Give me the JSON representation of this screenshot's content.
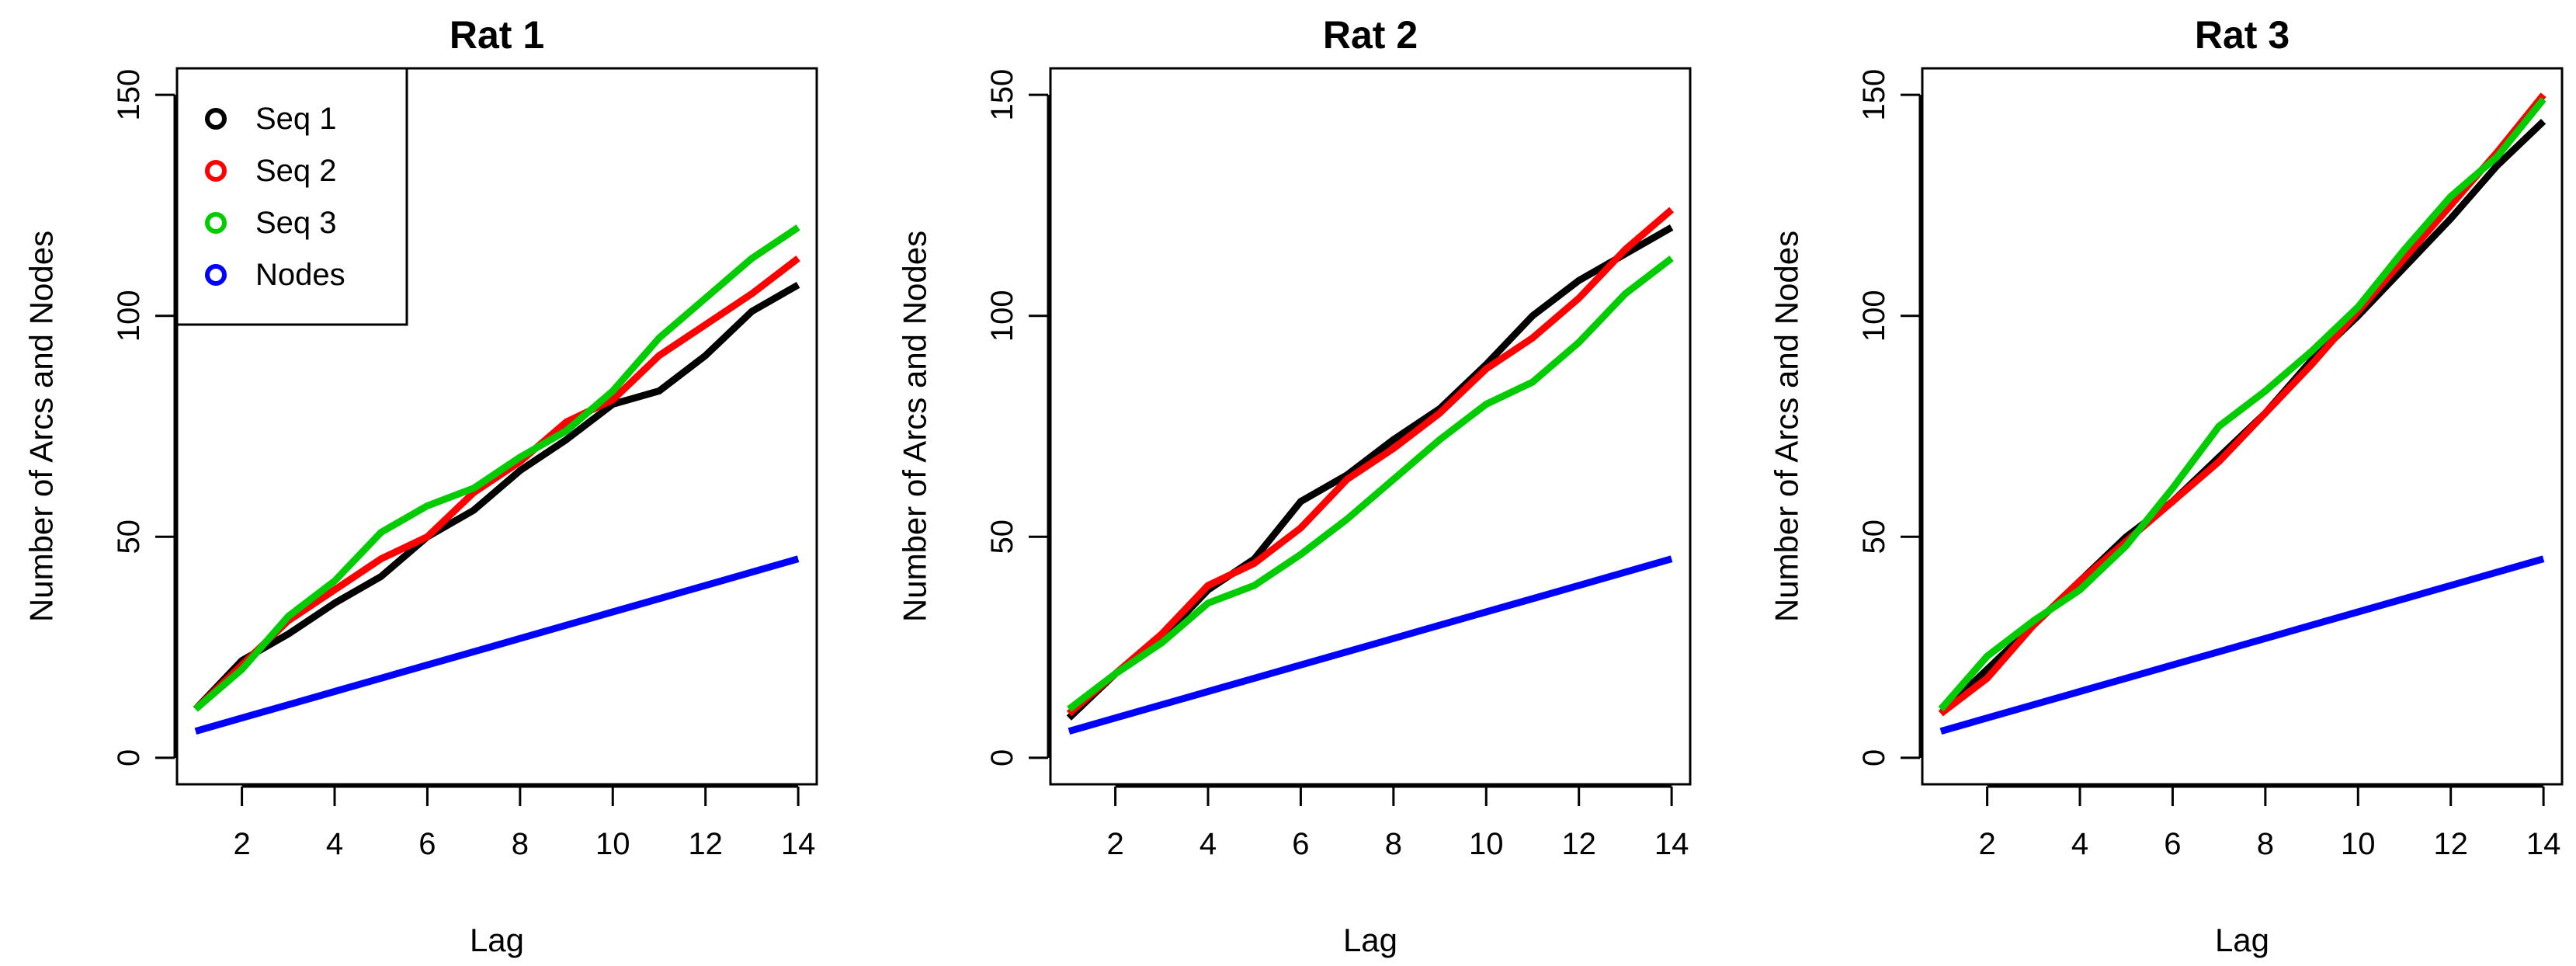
{
  "chart_data": [
    {
      "type": "line",
      "title": "Rat 1",
      "xlabel": "Lag",
      "ylabel": "Number of Arcs and Nodes",
      "xlim": [
        0.6,
        14.4
      ],
      "ylim": [
        -6,
        156
      ],
      "xticks": [
        2,
        4,
        6,
        8,
        10,
        12,
        14
      ],
      "yticks": [
        0,
        50,
        100,
        150
      ],
      "x": [
        1,
        2,
        3,
        4,
        5,
        6,
        7,
        8,
        9,
        10,
        11,
        12,
        13,
        14
      ],
      "legend": {
        "position": "top-left"
      },
      "series": [
        {
          "name": "Seq 1",
          "color": "#000000",
          "values": [
            11,
            22,
            28,
            35,
            41,
            50,
            56,
            65,
            72,
            80,
            83,
            91,
            101,
            107
          ]
        },
        {
          "name": "Seq 2",
          "color": "#ff0000",
          "values": [
            11,
            21,
            31,
            38,
            45,
            50,
            60,
            67,
            76,
            81,
            91,
            98,
            105,
            113
          ]
        },
        {
          "name": "Seq 3",
          "color": "#00cc00",
          "values": [
            11,
            20,
            32,
            40,
            51,
            57,
            61,
            68,
            74,
            83,
            95,
            104,
            113,
            120
          ]
        },
        {
          "name": "Nodes",
          "color": "#0000ff",
          "values": [
            6,
            9,
            12,
            15,
            18,
            21,
            24,
            27,
            30,
            33,
            36,
            39,
            42,
            45
          ]
        }
      ]
    },
    {
      "type": "line",
      "title": "Rat 2",
      "xlabel": "Lag",
      "ylabel": "Number of Arcs and Nodes",
      "xlim": [
        0.6,
        14.4
      ],
      "ylim": [
        -6,
        156
      ],
      "xticks": [
        2,
        4,
        6,
        8,
        10,
        12,
        14
      ],
      "yticks": [
        0,
        50,
        100,
        150
      ],
      "x": [
        1,
        2,
        3,
        4,
        5,
        6,
        7,
        8,
        9,
        10,
        11,
        12,
        13,
        14
      ],
      "series": [
        {
          "name": "Seq 1",
          "color": "#000000",
          "values": [
            9,
            19,
            27,
            38,
            45,
            58,
            64,
            72,
            79,
            89,
            100,
            108,
            114,
            120
          ]
        },
        {
          "name": "Seq 2",
          "color": "#ff0000",
          "values": [
            10,
            19,
            28,
            39,
            44,
            52,
            63,
            70,
            78,
            88,
            95,
            104,
            115,
            124
          ]
        },
        {
          "name": "Seq 3",
          "color": "#00cc00",
          "values": [
            11,
            19,
            26,
            35,
            39,
            46,
            54,
            63,
            72,
            80,
            85,
            94,
            105,
            113
          ]
        },
        {
          "name": "Nodes",
          "color": "#0000ff",
          "values": [
            6,
            9,
            12,
            15,
            18,
            21,
            24,
            27,
            30,
            33,
            36,
            39,
            42,
            45
          ]
        }
      ]
    },
    {
      "type": "line",
      "title": "Rat 3",
      "xlabel": "Lag",
      "ylabel": "Number of Arcs and Nodes",
      "xlim": [
        0.6,
        14.4
      ],
      "ylim": [
        -6,
        156
      ],
      "xticks": [
        2,
        4,
        6,
        8,
        10,
        12,
        14
      ],
      "yticks": [
        0,
        50,
        100,
        150
      ],
      "x": [
        1,
        2,
        3,
        4,
        5,
        6,
        7,
        8,
        9,
        10,
        11,
        12,
        13,
        14
      ],
      "series": [
        {
          "name": "Seq 1",
          "color": "#000000",
          "values": [
            10,
            20,
            30,
            40,
            50,
            58,
            68,
            78,
            90,
            100,
            111,
            122,
            134,
            144
          ]
        },
        {
          "name": "Seq 2",
          "color": "#ff0000",
          "values": [
            10,
            18,
            30,
            40,
            49,
            58,
            67,
            78,
            89,
            101,
            113,
            125,
            137,
            150
          ]
        },
        {
          "name": "Seq 3",
          "color": "#00cc00",
          "values": [
            11,
            23,
            31,
            38,
            48,
            61,
            75,
            83,
            92,
            102,
            115,
            127,
            136,
            149
          ]
        },
        {
          "name": "Nodes",
          "color": "#0000ff",
          "values": [
            6,
            9,
            12,
            15,
            18,
            21,
            24,
            27,
            30,
            33,
            36,
            39,
            42,
            45
          ]
        }
      ]
    }
  ]
}
